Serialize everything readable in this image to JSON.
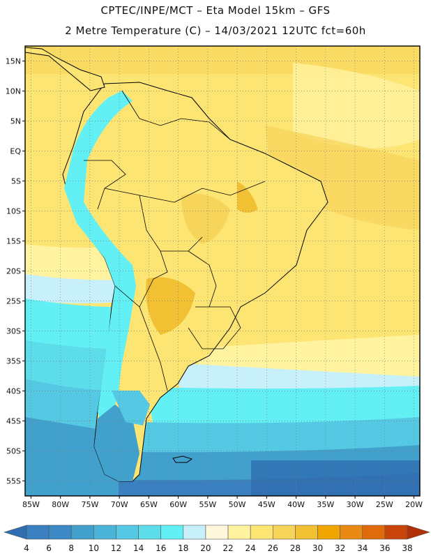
{
  "header": {
    "line1": "CPTEC/INPE/MCT –   Eta Model 15km – GFS",
    "line2": "2 Metre Temperature (C) – 14/03/2021 12UTC fct=60h"
  },
  "map": {
    "lat_labels": [
      "15N",
      "10N",
      "5N",
      "EQ",
      "5S",
      "10S",
      "15S",
      "20S",
      "25S",
      "30S",
      "35S",
      "40S",
      "45S",
      "50S",
      "55S"
    ],
    "lon_labels": [
      "85W",
      "80W",
      "75W",
      "70W",
      "65W",
      "60W",
      "55W",
      "50W",
      "45W",
      "40W",
      "35W",
      "30W",
      "25W",
      "20W"
    ],
    "lat_range": [
      17.5,
      -57.5
    ],
    "lon_range": [
      -86,
      -19
    ],
    "grid": "dotted"
  },
  "colorbar": {
    "labels": [
      "4",
      "6",
      "8",
      "10",
      "12",
      "14",
      "16",
      "18",
      "20",
      "22",
      "24",
      "26",
      "28",
      "30",
      "32",
      "34",
      "36",
      "38"
    ],
    "colors": [
      "#3a7fbf",
      "#3b8ac5",
      "#41a0cc",
      "#4cb4d8",
      "#55c8e3",
      "#5ddcea",
      "#62f0f5",
      "#c8f0fb",
      "#fff8dc",
      "#fff3a0",
      "#fde574",
      "#f7d45a",
      "#f1c033",
      "#f0a500",
      "#e88a14",
      "#e06b0c",
      "#c84408"
    ],
    "under_color": "#2f6eb0",
    "over_color": "#b23008"
  }
}
